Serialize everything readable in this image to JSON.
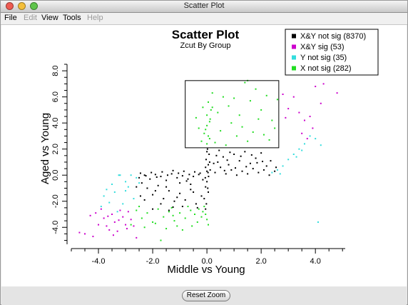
{
  "window": {
    "title": "Scatter Plot",
    "traffic_colors": [
      "#ee5b52",
      "#f4bf3a",
      "#5fc54b"
    ]
  },
  "menubar": {
    "items": [
      {
        "label": "File",
        "enabled": true
      },
      {
        "label": "Edit",
        "enabled": false
      },
      {
        "label": "View",
        "enabled": true
      },
      {
        "label": "Tools",
        "enabled": true
      },
      {
        "label": "Help",
        "enabled": false
      }
    ]
  },
  "chart_data": {
    "type": "scatter",
    "title": "Scatter Plot",
    "subtitle": "Zcut By Group",
    "xlabel": "Middle vs Young",
    "ylabel": "Aged vs Young",
    "xlim": [
      -5.0,
      5.1
    ],
    "ylim": [
      -5.3,
      8.5
    ],
    "xticks": [
      -4.0,
      -2.0,
      0.0,
      2.0,
      4.0
    ],
    "yticks": [
      -4.0,
      -2.0,
      0.0,
      2.0,
      4.0,
      6.0,
      8.0
    ],
    "grid": false,
    "legend_position": "top-right",
    "selection_box": {
      "x": [
        -0.8,
        2.65
      ],
      "y": [
        2.1,
        7.25
      ]
    },
    "series": [
      {
        "name": "X&Y not sig (8370)",
        "color": "#000000",
        "values": [
          [
            -2.5,
            -0.2
          ],
          [
            -2.3,
            0.0
          ],
          [
            -2.1,
            -0.3
          ],
          [
            -1.9,
            0.05
          ],
          [
            -1.7,
            -0.1
          ],
          [
            -1.5,
            -0.4
          ],
          [
            -1.3,
            0.1
          ],
          [
            -1.1,
            -0.2
          ],
          [
            -0.9,
            -0.05
          ],
          [
            -0.7,
            -0.3
          ],
          [
            -0.5,
            -0.1
          ],
          [
            -0.3,
            0.05
          ],
          [
            -2.4,
            -0.6
          ],
          [
            -2.2,
            -1.0
          ],
          [
            -2.0,
            -1.5
          ],
          [
            -1.8,
            -0.8
          ],
          [
            -1.6,
            -1.8
          ],
          [
            -1.4,
            -1.2
          ],
          [
            -1.2,
            -2.0
          ],
          [
            -1.0,
            -1.4
          ],
          [
            -0.8,
            -1.9
          ],
          [
            -0.6,
            -1.1
          ],
          [
            -0.4,
            -2.2
          ],
          [
            -0.2,
            -1.6
          ],
          [
            -2.3,
            -1.9
          ],
          [
            -2.0,
            -2.6
          ],
          [
            -1.7,
            -2.2
          ],
          [
            -1.4,
            -2.7
          ],
          [
            -1.1,
            -1.7
          ],
          [
            -0.9,
            -2.4
          ],
          [
            -0.6,
            -0.7
          ],
          [
            -0.35,
            -2.5
          ],
          [
            -1.9,
            -1.2
          ],
          [
            -1.5,
            -0.9
          ],
          [
            -1.0,
            -0.6
          ],
          [
            -0.5,
            -1.3
          ],
          [
            -2.6,
            -0.9
          ],
          [
            -2.45,
            -1.6
          ],
          [
            -1.25,
            -2.45
          ],
          [
            -0.75,
            -0.45
          ],
          [
            -0.15,
            -0.35
          ],
          [
            -0.05,
            -0.9
          ],
          [
            -0.1,
            -1.8
          ],
          [
            -0.05,
            -2.6
          ],
          [
            0.0,
            -0.5
          ],
          [
            0.05,
            -1.3
          ],
          [
            -0.02,
            -2.2
          ],
          [
            0.03,
            -1.0
          ],
          [
            0.0,
            0.3
          ],
          [
            0.05,
            0.8
          ],
          [
            -0.03,
            1.2
          ],
          [
            0.08,
            1.6
          ],
          [
            0.02,
            2.0
          ],
          [
            -0.05,
            0.6
          ],
          [
            0.1,
            1.0
          ],
          [
            0.0,
            1.8
          ],
          [
            0.04,
            0.2
          ],
          [
            -0.06,
            -0.2
          ],
          [
            0.12,
            0.4
          ],
          [
            0.06,
            -0.1
          ],
          [
            0.3,
            0.2
          ],
          [
            0.5,
            0.6
          ],
          [
            0.7,
            0.1
          ],
          [
            0.9,
            0.4
          ],
          [
            1.1,
            0.0
          ],
          [
            1.3,
            0.3
          ],
          [
            1.5,
            0.1
          ],
          [
            1.7,
            0.5
          ],
          [
            1.9,
            0.2
          ],
          [
            2.1,
            0.4
          ],
          [
            2.3,
            0.0
          ],
          [
            2.5,
            0.3
          ],
          [
            0.4,
            1.0
          ],
          [
            0.6,
            1.4
          ],
          [
            0.8,
            0.8
          ],
          [
            1.0,
            1.6
          ],
          [
            1.2,
            1.1
          ],
          [
            1.4,
            1.8
          ],
          [
            1.6,
            0.9
          ],
          [
            1.8,
            1.3
          ],
          [
            2.0,
            1.7
          ],
          [
            2.2,
            0.7
          ],
          [
            0.45,
            1.9
          ],
          [
            0.85,
            1.75
          ],
          [
            1.05,
            0.55
          ],
          [
            1.45,
            0.65
          ],
          [
            1.85,
            0.95
          ],
          [
            2.35,
            1.1
          ],
          [
            2.55,
            0.6
          ],
          [
            0.25,
            0.9
          ],
          [
            0.65,
            0.35
          ],
          [
            1.25,
            1.45
          ],
          [
            1.65,
            1.55
          ],
          [
            2.05,
            1.05
          ],
          [
            0.35,
            1.5
          ],
          [
            0.75,
            1.15
          ],
          [
            -0.25,
            0.15
          ],
          [
            -0.45,
            0.25
          ],
          [
            -0.65,
            0.05
          ],
          [
            -0.85,
            0.3
          ],
          [
            -1.05,
            0.15
          ],
          [
            -1.25,
            0.35
          ],
          [
            -1.45,
            0.0
          ],
          [
            -1.65,
            0.25
          ],
          [
            -1.85,
            -0.15
          ],
          [
            -2.05,
            0.2
          ],
          [
            -2.25,
            -0.05
          ],
          [
            -2.45,
            0.15
          ]
        ]
      },
      {
        "name": "X&Y sig (53)",
        "color": "#cc00cc",
        "values": [
          [
            -4.7,
            -4.4
          ],
          [
            -4.5,
            -4.5
          ],
          [
            -4.2,
            -4.7
          ],
          [
            -4.0,
            -3.8
          ],
          [
            -3.8,
            -3.3
          ],
          [
            -3.7,
            -3.9
          ],
          [
            -3.6,
            -4.2
          ],
          [
            -3.5,
            -3.0
          ],
          [
            -3.4,
            -3.6
          ],
          [
            -3.3,
            -4.3
          ],
          [
            -3.2,
            -2.7
          ],
          [
            -3.1,
            -3.2
          ],
          [
            -3.0,
            -3.8
          ],
          [
            -2.9,
            -2.8
          ],
          [
            -2.8,
            -3.4
          ],
          [
            -2.7,
            -3.9
          ],
          [
            -2.6,
            -4.8
          ],
          [
            -3.9,
            -2.6
          ],
          [
            -3.65,
            -3.15
          ],
          [
            -3.45,
            -4.6
          ],
          [
            -3.25,
            -3.45
          ],
          [
            -2.95,
            -4.1
          ],
          [
            -4.3,
            -3.1
          ],
          [
            -4.1,
            -2.9
          ],
          [
            2.8,
            6.2
          ],
          [
            3.0,
            5.1
          ],
          [
            3.2,
            6.0
          ],
          [
            3.4,
            4.8
          ],
          [
            3.5,
            3.2
          ],
          [
            3.6,
            4.2
          ],
          [
            3.7,
            2.8
          ],
          [
            3.8,
            4.5
          ],
          [
            3.9,
            3.6
          ],
          [
            4.0,
            6.8
          ],
          [
            4.2,
            5.5
          ],
          [
            4.4,
            7.8
          ],
          [
            4.6,
            8.0
          ],
          [
            4.8,
            6.3
          ],
          [
            4.3,
            7.0
          ],
          [
            2.9,
            4.4
          ]
        ]
      },
      {
        "name": "Y not sig (35)",
        "color": "#33dddd",
        "values": [
          [
            -3.2,
            0.0
          ],
          [
            -3.0,
            -0.5
          ],
          [
            -2.8,
            0.0
          ],
          [
            -2.6,
            -0.2
          ],
          [
            -3.4,
            -1.3
          ],
          [
            -3.6,
            -2.1
          ],
          [
            -3.8,
            -1.6
          ],
          [
            -3.3,
            -2.8
          ],
          [
            -3.0,
            -1.2
          ],
          [
            -2.7,
            -1.8
          ],
          [
            -3.5,
            -0.7
          ],
          [
            -2.5,
            -0.6
          ],
          [
            -3.9,
            -2.4
          ],
          [
            -3.1,
            -2.2
          ],
          [
            -2.9,
            -0.9
          ],
          [
            -3.25,
            0.0
          ],
          [
            -3.7,
            -1.1
          ],
          [
            2.4,
            0.2
          ],
          [
            2.6,
            0.4
          ],
          [
            2.8,
            0.7
          ],
          [
            3.0,
            1.2
          ],
          [
            3.2,
            1.6
          ],
          [
            3.4,
            2.0
          ],
          [
            3.6,
            2.4
          ],
          [
            3.8,
            3.0
          ],
          [
            4.0,
            2.8
          ],
          [
            4.2,
            2.3
          ],
          [
            4.1,
            -3.6
          ],
          [
            3.3,
            1.4
          ],
          [
            2.7,
            0.1
          ],
          [
            3.5,
            1.9
          ]
        ]
      },
      {
        "name": "X not sig (282)",
        "color": "#22dd22",
        "values": [
          [
            0.0,
            2.4
          ],
          [
            0.05,
            3.0
          ],
          [
            -0.05,
            3.5
          ],
          [
            0.1,
            4.1
          ],
          [
            0.0,
            4.6
          ],
          [
            0.15,
            5.0
          ],
          [
            0.05,
            5.6
          ],
          [
            0.2,
            6.3
          ],
          [
            0.1,
            2.8
          ],
          [
            -0.1,
            3.2
          ],
          [
            0.0,
            3.8
          ],
          [
            0.12,
            4.3
          ],
          [
            0.3,
            2.5
          ],
          [
            0.5,
            3.4
          ],
          [
            0.7,
            2.3
          ],
          [
            0.9,
            4.0
          ],
          [
            1.1,
            3.0
          ],
          [
            1.3,
            3.7
          ],
          [
            1.5,
            2.6
          ],
          [
            1.7,
            3.3
          ],
          [
            1.9,
            4.3
          ],
          [
            2.1,
            3.1
          ],
          [
            2.3,
            2.7
          ],
          [
            2.5,
            3.6
          ],
          [
            0.4,
            4.8
          ],
          [
            0.8,
            5.3
          ],
          [
            1.2,
            4.6
          ],
          [
            1.6,
            5.7
          ],
          [
            2.0,
            5.0
          ],
          [
            2.2,
            6.1
          ],
          [
            1.8,
            6.6
          ],
          [
            1.4,
            7.1
          ],
          [
            0.6,
            6.0
          ],
          [
            1.0,
            5.9
          ],
          [
            2.4,
            4.2
          ],
          [
            0.2,
            5.2
          ],
          [
            -0.3,
            3.6
          ],
          [
            -0.2,
            2.6
          ],
          [
            -0.4,
            4.4
          ],
          [
            -0.15,
            5.2
          ],
          [
            2.6,
            5.8
          ],
          [
            1.5,
            7.25
          ],
          [
            -0.1,
            -2.4
          ],
          [
            -0.05,
            -3.0
          ],
          [
            0.0,
            -3.4
          ],
          [
            -0.15,
            -2.8
          ],
          [
            0.05,
            -3.8
          ],
          [
            -0.2,
            -3.2
          ],
          [
            -0.3,
            -2.6
          ],
          [
            -0.45,
            -3.0
          ],
          [
            -0.6,
            -2.7
          ],
          [
            -0.8,
            -3.3
          ],
          [
            -1.0,
            -2.9
          ],
          [
            -1.2,
            -3.5
          ],
          [
            -1.4,
            -2.8
          ],
          [
            -1.6,
            -3.2
          ],
          [
            -1.8,
            -2.6
          ],
          [
            -2.0,
            -3.6
          ],
          [
            -2.2,
            -2.9
          ],
          [
            -2.4,
            -3.3
          ],
          [
            -2.6,
            -2.7
          ],
          [
            -2.8,
            -3.8
          ],
          [
            -0.7,
            -2.4
          ],
          [
            -1.1,
            -3.9
          ],
          [
            -1.5,
            -4.1
          ],
          [
            -1.9,
            -3.7
          ],
          [
            -2.3,
            -4.0
          ],
          [
            -0.9,
            -4.2
          ],
          [
            -0.35,
            -3.6
          ],
          [
            -1.7,
            -5.0
          ],
          [
            -2.5,
            -2.4
          ],
          [
            -1.3,
            -2.5
          ],
          [
            -0.55,
            -3.9
          ],
          [
            -1.25,
            -3.1
          ]
        ]
      }
    ]
  },
  "bottombar": {
    "reset_zoom_label": "Reset Zoom"
  }
}
